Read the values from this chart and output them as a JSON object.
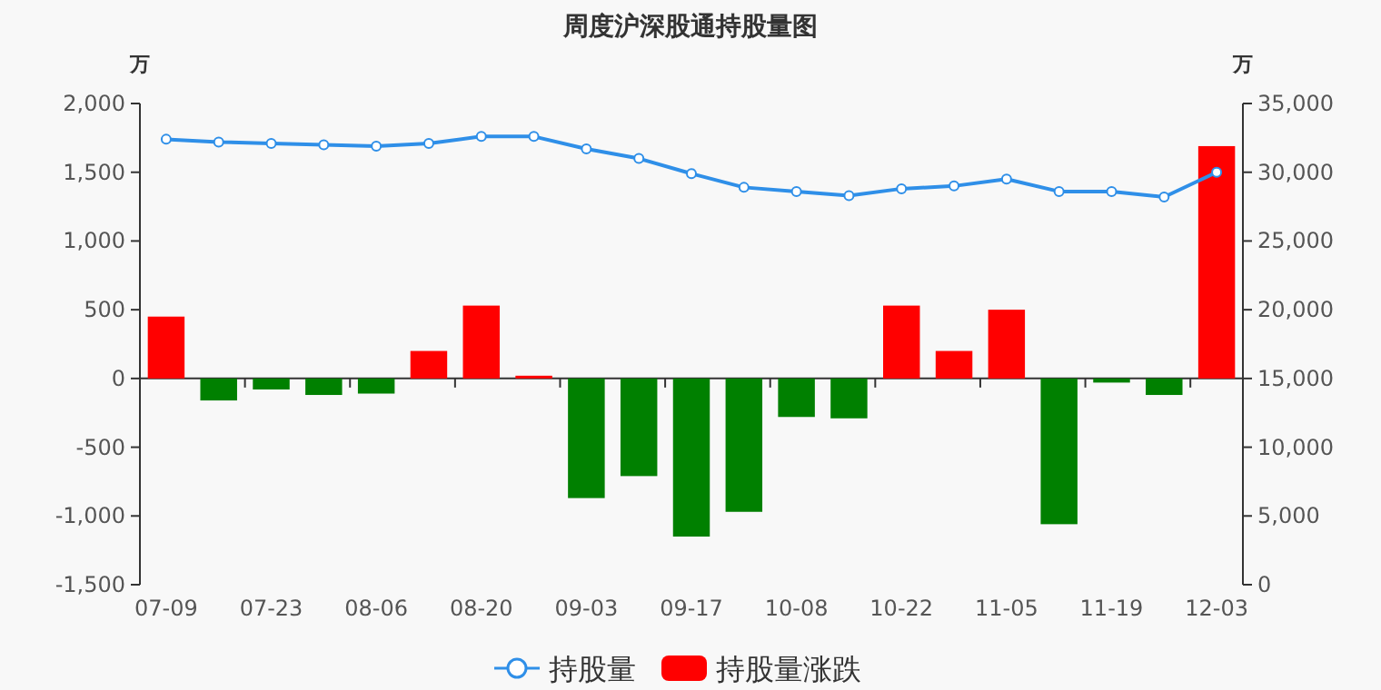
{
  "chart_data": {
    "type": "bar",
    "title": "周度沪深股通持股量图",
    "ylabel": "万",
    "y2label": "万",
    "categories": [
      "07-09",
      null,
      "07-23",
      null,
      "08-06",
      null,
      "08-20",
      null,
      "09-03",
      null,
      "09-17",
      null,
      "10-08",
      null,
      "10-22",
      null,
      "11-05",
      null,
      "11-19",
      null,
      "12-03"
    ],
    "series": [
      {
        "name": "持股量",
        "type": "line",
        "axis": "y2",
        "color": "#2f8fe8",
        "marker": "circle",
        "values": [
          32400,
          32200,
          32100,
          32000,
          31900,
          32100,
          32600,
          32600,
          31700,
          31000,
          29900,
          28900,
          28600,
          28300,
          28800,
          29000,
          29500,
          28600,
          28600,
          28200,
          30000
        ]
      },
      {
        "name": "持股量涨跌",
        "color": "#ff0000",
        "colors": [
          "#ff0000",
          "#008000",
          "#008000",
          "#008000",
          "#008000",
          "#ff0000",
          "#ff0000",
          "#ff0000",
          "#008000",
          "#008000",
          "#008000",
          "#008000",
          "#008000",
          "#008000",
          "#ff0000",
          "#ff0000",
          "#ff0000",
          "#008000",
          "#008000",
          "#008000",
          "#ff0000"
        ],
        "values": [
          450,
          -160,
          -80,
          -120,
          -110,
          200,
          530,
          20,
          -870,
          -710,
          -1150,
          -970,
          -280,
          -290,
          530,
          200,
          500,
          -1060,
          -30,
          -120,
          1690
        ]
      }
    ],
    "ylim": [
      -1500,
      2000
    ],
    "yticks": [
      {
        "value": -1500,
        "label": "-1,500"
      },
      {
        "value": -1000,
        "label": "-1,000"
      },
      {
        "value": -500,
        "label": "-500"
      },
      0,
      {
        "value": 500,
        "label": "500"
      },
      {
        "value": 1000,
        "label": "1,000"
      },
      {
        "value": 1500,
        "label": "1,500"
      },
      {
        "value": 2000,
        "label": "2,000"
      }
    ],
    "y2lim": [
      0,
      35000
    ],
    "y2ticks": [
      0,
      {
        "value": 5000,
        "label": "5,000"
      },
      {
        "value": 10000,
        "label": "10,000"
      },
      {
        "value": 15000,
        "label": "15,000"
      },
      {
        "value": 20000,
        "label": "20,000"
      },
      {
        "value": 25000,
        "label": "25,000"
      },
      {
        "value": 30000,
        "label": "30,000"
      },
      {
        "value": 35000,
        "label": "35,000"
      }
    ],
    "legend": "bottom"
  }
}
